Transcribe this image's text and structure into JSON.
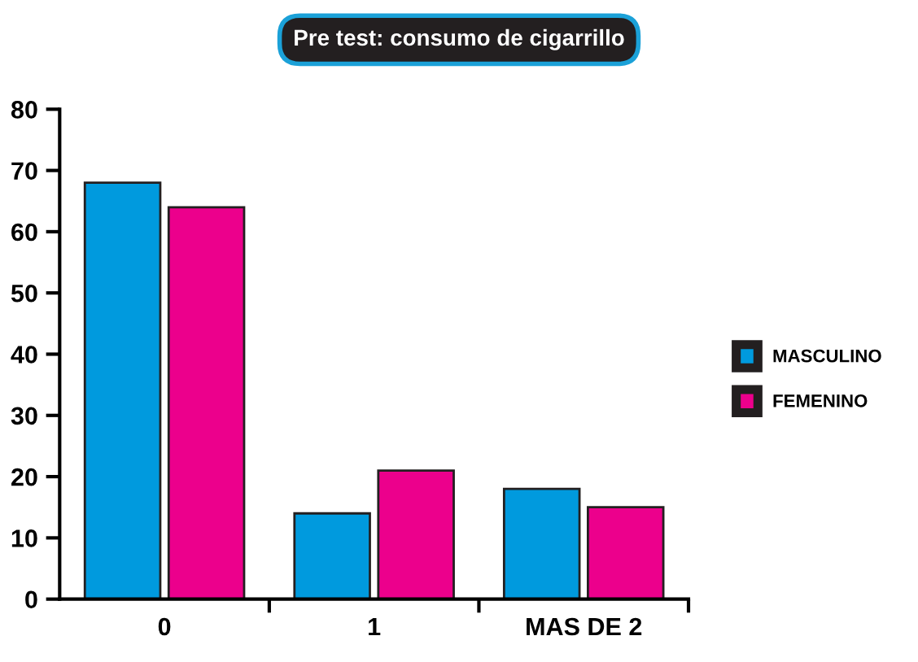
{
  "chart_data": {
    "type": "bar",
    "title": "Pre test: consumo de cigarrillo",
    "categories": [
      "0",
      "1",
      "MAS DE 2"
    ],
    "series": [
      {
        "name": "MASCULINO",
        "color": "#009ade",
        "values": [
          68,
          14,
          18
        ]
      },
      {
        "name": "FEMENINO",
        "color": "#ec008c",
        "values": [
          64,
          21,
          15
        ]
      }
    ],
    "ylim": [
      0,
      80
    ],
    "yticks": [
      0,
      10,
      20,
      30,
      40,
      50,
      60,
      70,
      80
    ],
    "grid": false,
    "legend": "right"
  }
}
